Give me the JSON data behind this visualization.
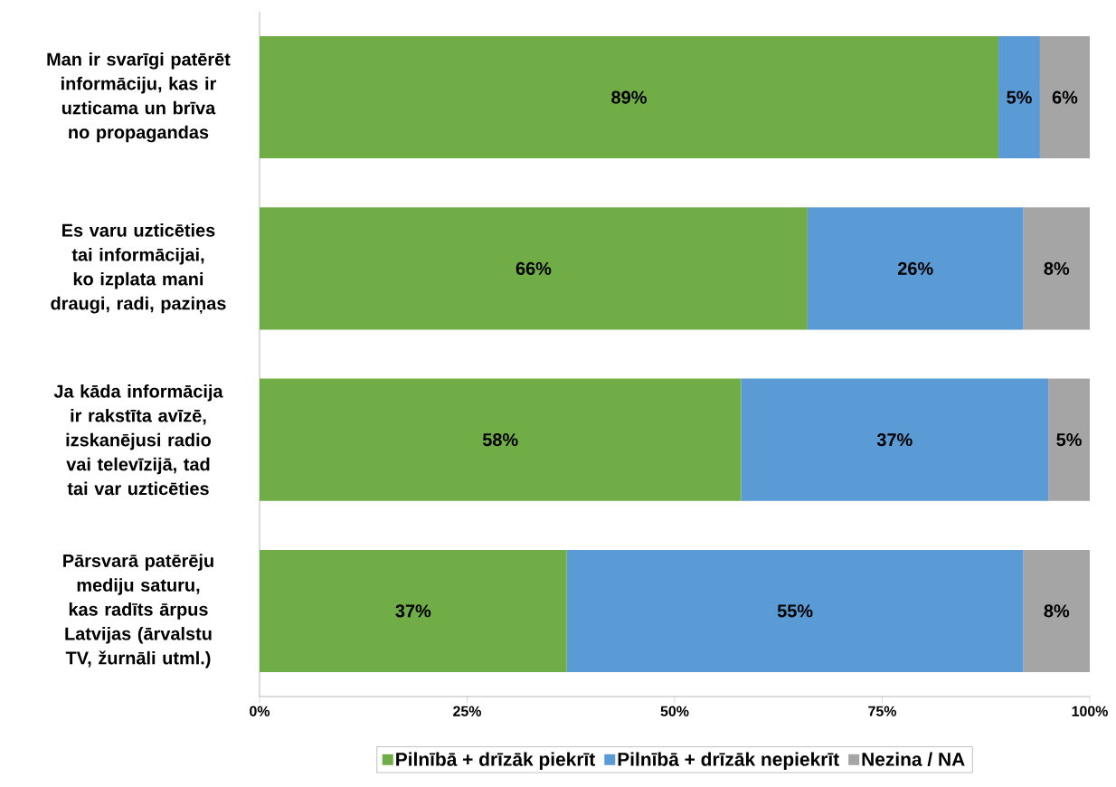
{
  "chart_data": {
    "type": "bar",
    "orientation": "horizontal",
    "stacked": true,
    "categories": [
      "Man ir svarīgi patērēt informāciju, kas ir uzticama un brīva no propagandas",
      "Es varu uzticēties tai informācijai, ko izplata mani draugi, radi, paziņas",
      "Ja kāda informācija ir rakstīta avīzē, izskanējusi radio vai televīzijā, tad tai var uzticēties",
      "Pārsvarā patērēju mediju saturu, kas radīts ārpus Latvijas (ārvalstu TV, žurnāli utml.)"
    ],
    "series": [
      {
        "name": "Pilnībā + drīzāk piekrīt",
        "color": "#70ad47",
        "values": [
          89,
          66,
          58,
          37
        ],
        "value_labels": [
          "89%",
          "66%",
          "58%",
          "37%"
        ]
      },
      {
        "name": "Pilnībā + drīzāk nepiekrīt",
        "color": "#5b9bd5",
        "values": [
          5,
          26,
          37,
          55
        ],
        "value_labels": [
          "5%",
          "26%",
          "37%",
          "55%"
        ]
      },
      {
        "name": "Nezina / NA",
        "color": "#a5a5a5",
        "values": [
          6,
          8,
          5,
          8
        ],
        "value_labels": [
          "6%",
          "8%",
          "5%",
          "8%"
        ]
      }
    ],
    "xlim": [
      0,
      100
    ],
    "xticks": [
      {
        "value": 0,
        "label": "0%"
      },
      {
        "value": 25,
        "label": "25%"
      },
      {
        "value": 50,
        "label": "50%"
      },
      {
        "value": 75,
        "label": "75%"
      },
      {
        "value": 100,
        "label": "100%"
      }
    ],
    "grid": false,
    "legend": "bottom"
  }
}
